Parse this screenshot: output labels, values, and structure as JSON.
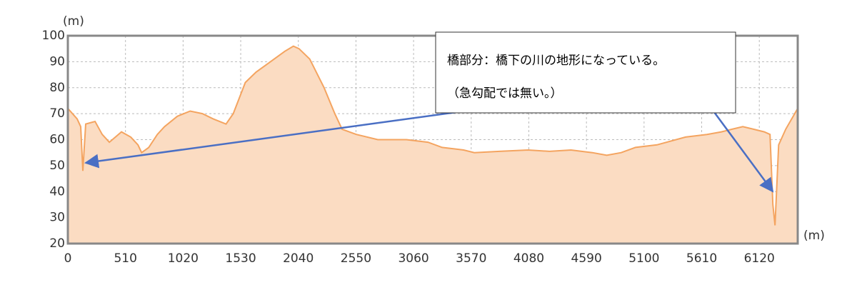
{
  "chart_data": {
    "type": "area",
    "y_label": "(m)",
    "x_label": "(m)",
    "x": [
      0,
      82,
      114,
      133,
      158,
      241,
      304,
      367,
      475,
      557,
      621,
      653,
      716,
      792,
      855,
      969,
      1083,
      1191,
      1286,
      1400,
      1464,
      1571,
      1666,
      1793,
      1920,
      1996,
      2046,
      2141,
      2268,
      2363,
      2427,
      2553,
      2743,
      2997,
      3187,
      3313,
      3503,
      3598,
      3820,
      4073,
      4263,
      4453,
      4643,
      4770,
      4897,
      5024,
      5214,
      5467,
      5657,
      5784,
      5879,
      5974,
      6069,
      6164,
      6215,
      6240,
      6259,
      6291,
      6354,
      6460
    ],
    "values": [
      72,
      68,
      65,
      48,
      66,
      67,
      62,
      59,
      63,
      61,
      58,
      55,
      57,
      62,
      65,
      69,
      71,
      70,
      68,
      66,
      70,
      82,
      86,
      90,
      94,
      96,
      95,
      91,
      80,
      70,
      64,
      62,
      60,
      60,
      59,
      57,
      56,
      55,
      55.5,
      56,
      55.5,
      56,
      55,
      54,
      55,
      57,
      58,
      61,
      62,
      63,
      64,
      65,
      64,
      63,
      62,
      35,
      27,
      58,
      64,
      72
    ],
    "color": "#f4a460",
    "fill_color": "#fbdcc2",
    "xlim": [
      0,
      6460
    ],
    "ylim": [
      20,
      100
    ],
    "xticks": [
      0,
      510,
      1020,
      1530,
      2040,
      2550,
      3060,
      3570,
      4080,
      4590,
      5100,
      5610,
      6120
    ],
    "yticks": [
      20,
      30,
      40,
      50,
      60,
      70,
      80,
      90,
      100
    ],
    "grid": true,
    "annotation": [
      "橋部分：橋下の川の地形になっている。",
      "（急勾配では無い。）"
    ]
  }
}
